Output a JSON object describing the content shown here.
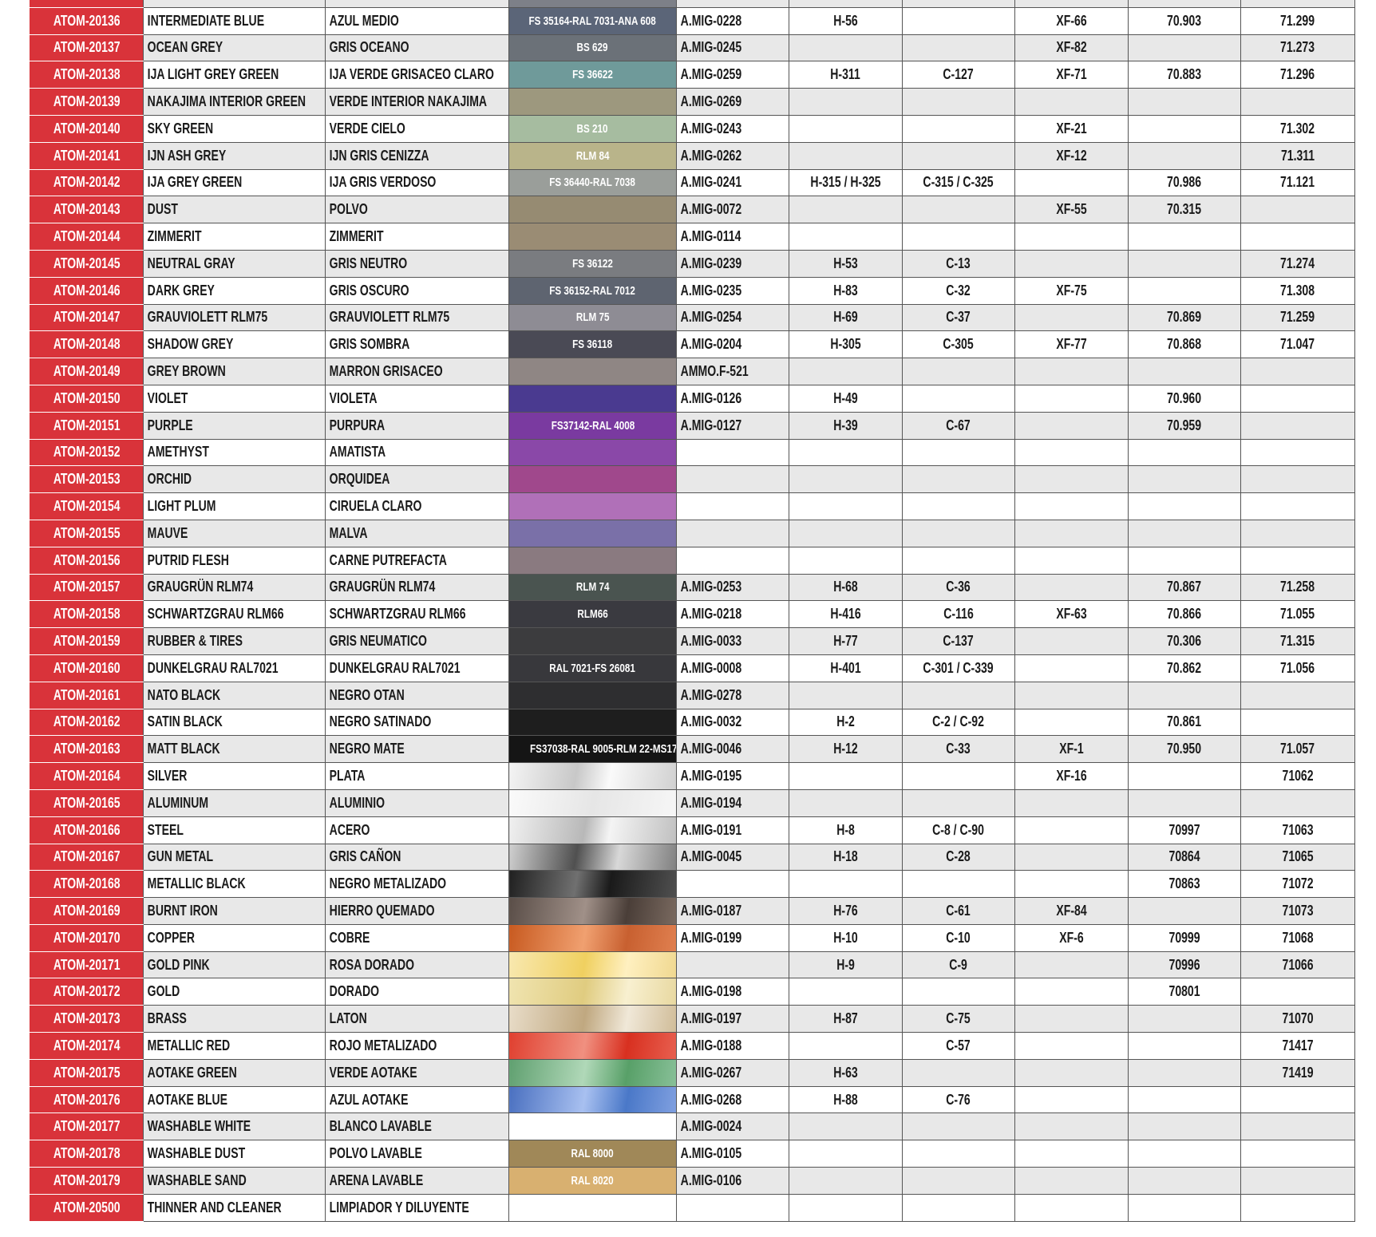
{
  "rows": [
    {
      "id": "",
      "en": "",
      "es": "",
      "sw": "",
      "col": "#7d8088",
      "amig": "",
      "h": "",
      "c": "",
      "xf": "",
      "v70": "",
      "v71": ""
    },
    {
      "id": "ATOM-20136",
      "en": "INTERMEDIATE BLUE",
      "es": "AZUL MEDIO",
      "sw": "FS 35164-RAL 7031-ANA 608",
      "col": "#5b6578",
      "amig": "A.MIG-0228",
      "h": "H-56",
      "c": "",
      "xf": "XF-66",
      "v70": "70.903",
      "v71": "71.299"
    },
    {
      "id": "ATOM-20137",
      "en": "OCEAN GREY",
      "es": "GRIS OCEANO",
      "sw": "BS 629",
      "col": "#6b7178",
      "amig": "A.MIG-0245",
      "h": "",
      "c": "",
      "xf": "XF-82",
      "v70": "",
      "v71": "71.273"
    },
    {
      "id": "ATOM-20138",
      "en": "IJA LIGHT GREY GREEN",
      "es": "IJA VERDE GRISACEO CLARO",
      "sw": "FS 36622",
      "col": "#6f9a9a",
      "amig": "A.MIG-0259",
      "h": "H-311",
      "c": "C-127",
      "xf": "XF-71",
      "v70": "70.883",
      "v71": "71.296"
    },
    {
      "id": "ATOM-20139",
      "en": "NAKAJIMA INTERIOR GREEN",
      "es": "VERDE INTERIOR NAKAJIMA",
      "sw": "",
      "col": "#9d987e",
      "amig": "A.MIG-0269",
      "h": "",
      "c": "",
      "xf": "",
      "v70": "",
      "v71": ""
    },
    {
      "id": "ATOM-20140",
      "en": "SKY GREEN",
      "es": "VERDE CIELO",
      "sw": "BS 210",
      "col": "#a6bca0",
      "amig": "A.MIG-0243",
      "h": "",
      "c": "",
      "xf": "XF-21",
      "v70": "",
      "v71": "71.302"
    },
    {
      "id": "ATOM-20141",
      "en": "IJN ASH GREY",
      "es": "IJN GRIS CENIZZA",
      "sw": "RLM 84",
      "col": "#b9b48a",
      "amig": "A.MIG-0262",
      "h": "",
      "c": "",
      "xf": "XF-12",
      "v70": "",
      "v71": "71.311"
    },
    {
      "id": "ATOM-20142",
      "en": "IJA GREY GREEN",
      "es": "IJA GRIS VERDOSO",
      "sw": "FS 36440-RAL 7038",
      "col": "#9a9e9a",
      "amig": "A.MIG-0241",
      "h": "H-315 / H-325",
      "c": "C-315 / C-325",
      "xf": "",
      "v70": "70.986",
      "v71": "71.121"
    },
    {
      "id": "ATOM-20143",
      "en": "DUST",
      "es": "POLVO",
      "sw": "",
      "col": "#968b72",
      "amig": "A.MIG-0072",
      "h": "",
      "c": "",
      "xf": "XF-55",
      "v70": "70.315",
      "v71": ""
    },
    {
      "id": "ATOM-20144",
      "en": "ZIMMERIT",
      "es": "ZIMMERIT",
      "sw": "",
      "col": "#9a8c74",
      "amig": "A.MIG-0114",
      "h": "",
      "c": "",
      "xf": "",
      "v70": "",
      "v71": ""
    },
    {
      "id": "ATOM-20145",
      "en": "NEUTRAL GRAY",
      "es": "GRIS NEUTRO",
      "sw": "FS 36122",
      "col": "#7a7c80",
      "amig": "A.MIG-0239",
      "h": "H-53",
      "c": "C-13",
      "xf": "",
      "v70": "",
      "v71": "71.274"
    },
    {
      "id": "ATOM-20146",
      "en": "DARK GREY",
      "es": "GRIS OSCURO",
      "sw": "FS 36152-RAL 7012",
      "col": "#5e6470",
      "amig": "A.MIG-0235",
      "h": "H-83",
      "c": "C-32",
      "xf": "XF-75",
      "v70": "",
      "v71": "71.308"
    },
    {
      "id": "ATOM-20147",
      "en": "GRAUVIOLETT RLM75",
      "es": "GRAUVIOLETT RLM75",
      "sw": "RLM 75",
      "col": "#8e8c94",
      "amig": "A.MIG-0254",
      "h": "H-69",
      "c": "C-37",
      "xf": "",
      "v70": "70.869",
      "v71": "71.259"
    },
    {
      "id": "ATOM-20148",
      "en": "SHADOW GREY",
      "es": "GRIS SOMBRA",
      "sw": "FS 36118",
      "col": "#4a4a55",
      "amig": "A.MIG-0204",
      "h": "H-305",
      "c": "C-305",
      "xf": "XF-77",
      "v70": "70.868",
      "v71": "71.047"
    },
    {
      "id": "ATOM-20149",
      "en": "GREY BROWN",
      "es": "MARRON GRISACEO",
      "sw": "",
      "col": "#8f8684",
      "amig": "AMMO.F-521",
      "h": "",
      "c": "",
      "xf": "",
      "v70": "",
      "v71": ""
    },
    {
      "id": "ATOM-20150",
      "en": "VIOLET",
      "es": "VIOLETA",
      "sw": "",
      "col": "#4a3a90",
      "amig": "A.MIG-0126",
      "h": "H-49",
      "c": "",
      "xf": "",
      "v70": "70.960",
      "v71": ""
    },
    {
      "id": "ATOM-20151",
      "en": "PURPLE",
      "es": "PURPURA",
      "sw": "FS37142-RAL 4008",
      "col": "#7a3aa0",
      "amig": "A.MIG-0127",
      "h": "H-39",
      "c": "C-67",
      "xf": "",
      "v70": "70.959",
      "v71": ""
    },
    {
      "id": "ATOM-20152",
      "en": "AMETHYST",
      "es": "AMATISTA",
      "sw": "",
      "col": "#8a48a8",
      "amig": "",
      "h": "",
      "c": "",
      "xf": "",
      "v70": "",
      "v71": ""
    },
    {
      "id": "ATOM-20153",
      "en": "ORCHID",
      "es": "ORQUIDEA",
      "sw": "",
      "col": "#a0488c",
      "amig": "",
      "h": "",
      "c": "",
      "xf": "",
      "v70": "",
      "v71": ""
    },
    {
      "id": "ATOM-20154",
      "en": "LIGHT PLUM",
      "es": "CIRUELA CLARO",
      "sw": "",
      "col": "#b070b8",
      "amig": "",
      "h": "",
      "c": "",
      "xf": "",
      "v70": "",
      "v71": ""
    },
    {
      "id": "ATOM-20155",
      "en": "MAUVE",
      "es": "MALVA",
      "sw": "",
      "col": "#7a70a8",
      "amig": "",
      "h": "",
      "c": "",
      "xf": "",
      "v70": "",
      "v71": ""
    },
    {
      "id": "ATOM-20156",
      "en": "PUTRID FLESH",
      "es": "CARNE PUTREFACTA",
      "sw": "",
      "col": "#8a7a80",
      "amig": "",
      "h": "",
      "c": "",
      "xf": "",
      "v70": "",
      "v71": ""
    },
    {
      "id": "ATOM-20157",
      "en": "GRAUGRÜN RLM74",
      "es": "GRAUGRÜN RLM74",
      "sw": "RLM 74",
      "col": "#4a5450",
      "amig": "A.MIG-0253",
      "h": "H-68",
      "c": "C-36",
      "xf": "",
      "v70": "70.867",
      "v71": "71.258"
    },
    {
      "id": "ATOM-20158",
      "en": "SCHWARTZGRAU RLM66",
      "es": "SCHWARTZGRAU RLM66",
      "sw": "RLM66",
      "col": "#3a3a40",
      "amig": "A.MIG-0218",
      "h": "H-416",
      "c": "C-116",
      "xf": "XF-63",
      "v70": "70.866",
      "v71": "71.055"
    },
    {
      "id": "ATOM-20159",
      "en": "RUBBER & TIRES",
      "es": "GRIS NEUMATICO",
      "sw": "",
      "col": "#3c3c3e",
      "amig": "A.MIG-0033",
      "h": "H-77",
      "c": "C-137",
      "xf": "",
      "v70": "70.306",
      "v71": "71.315"
    },
    {
      "id": "ATOM-20160",
      "en": "DUNKELGRAU RAL7021",
      "es": "DUNKELGRAU RAL7021",
      "sw": "RAL 7021-FS 26081",
      "col": "#38383c",
      "amig": "A.MIG-0008",
      "h": "H-401",
      "c": "C-301 / C-339",
      "xf": "",
      "v70": "70.862",
      "v71": "71.056"
    },
    {
      "id": "ATOM-20161",
      "en": "NATO BLACK",
      "es": "NEGRO OTAN",
      "sw": "",
      "col": "#2e2e30",
      "amig": "A.MIG-0278",
      "h": "",
      "c": "",
      "xf": "",
      "v70": "",
      "v71": ""
    },
    {
      "id": "ATOM-20162",
      "en": "SATIN BLACK",
      "es": "NEGRO SATINADO",
      "sw": "",
      "col": "#1e1e1e",
      "amig": "A.MIG-0032",
      "h": "H-2",
      "c": "C-2 / C-92",
      "xf": "",
      "v70": "70.861",
      "v71": ""
    },
    {
      "id": "ATOM-20163",
      "en": "MATT BLACK",
      "es": "NEGRO MATE",
      "sw": "FS37038-RAL 9005-RLM 22-MS17",
      "col": "#151515",
      "amig": "A.MIG-0046",
      "h": "H-12",
      "c": "C-33",
      "xf": "XF-1",
      "v70": "70.950",
      "v71": "71.057"
    },
    {
      "id": "ATOM-20164",
      "en": "SILVER",
      "es": "PLATA",
      "sw": "",
      "col": "linear-gradient(100deg,#f4f4f4,#c8c8c8 40%,#fafafa 60%,#d0d0d0)",
      "amig": "A.MIG-0195",
      "h": "",
      "c": "",
      "xf": "XF-16",
      "v70": "",
      "v71": "71062"
    },
    {
      "id": "ATOM-20165",
      "en": "ALUMINUM",
      "es": "ALUMINIO",
      "sw": "",
      "col": "linear-gradient(100deg,#fafafa,#e6e6e6 50%,#f6f6f6)",
      "amig": "A.MIG-0194",
      "h": "",
      "c": "",
      "xf": "",
      "v70": "",
      "v71": ""
    },
    {
      "id": "ATOM-20166",
      "en": "STEEL",
      "es": "ACERO",
      "sw": "",
      "col": "linear-gradient(100deg,#f0f0f0,#b8b8b8 45%,#f4f4f4 60%,#c0c0c0)",
      "amig": "A.MIG-0191",
      "h": "H-8",
      "c": "C-8 / C-90",
      "xf": "",
      "v70": "70997",
      "v71": "71063"
    },
    {
      "id": "ATOM-20167",
      "en": "GUN METAL",
      "es": "GRIS CAÑON",
      "sw": "",
      "col": "linear-gradient(100deg,#d0d0d0,#505050 40%,#d8d8d8 65%,#808080)",
      "amig": "A.MIG-0045",
      "h": "H-18",
      "c": "C-28",
      "xf": "",
      "v70": "70864",
      "v71": "71065"
    },
    {
      "id": "ATOM-20168",
      "en": "METALLIC BLACK",
      "es": "NEGRO METALIZADO",
      "sw": "",
      "col": "linear-gradient(100deg,#202020,#707070 40%,#1a1a1a 60%,#505050)",
      "amig": "",
      "h": "",
      "c": "",
      "xf": "",
      "v70": "70863",
      "v71": "71072"
    },
    {
      "id": "ATOM-20169",
      "en": "BURNT IRON",
      "es": "HIERRO QUEMADO",
      "sw": "",
      "col": "linear-gradient(100deg,#5a4e48,#a09088 45%,#4a3e38 70%,#7a6a60)",
      "amig": "A.MIG-0187",
      "h": "H-76",
      "c": "C-61",
      "xf": "XF-84",
      "v70": "",
      "v71": "71073"
    },
    {
      "id": "ATOM-20170",
      "en": "COPPER",
      "es": "COBRE",
      "sw": "",
      "col": "linear-gradient(100deg,#c85a20,#f0a070 45%,#c86030 70%,#e08050)",
      "amig": "A.MIG-0199",
      "h": "H-10",
      "c": "C-10",
      "xf": "XF-6",
      "v70": "70999",
      "v71": "71068"
    },
    {
      "id": "ATOM-20171",
      "en": "GOLD PINK",
      "es": "ROSA DORADO",
      "sw": "",
      "col": "linear-gradient(100deg,#f8e8b0,#f0d060 45%,#fff0c0 70%,#f0d890)",
      "amig": "",
      "h": "H-9",
      "c": "C-9",
      "xf": "",
      "v70": "70996",
      "v71": "71066"
    },
    {
      "id": "ATOM-20172",
      "en": "GOLD",
      "es": "DORADO",
      "sw": "",
      "col": "linear-gradient(100deg,#f0e4b0,#e0cc80 45%,#f8f0d0 70%,#e8d8a0)",
      "amig": "A.MIG-0198",
      "h": "",
      "c": "",
      "xf": "",
      "v70": "70801",
      "v71": ""
    },
    {
      "id": "ATOM-20173",
      "en": "BRASS",
      "es": "LATON",
      "sw": "",
      "col": "linear-gradient(100deg,#e8dcc8,#c0a880 45%,#f0e8d8 70%,#d0bc98)",
      "amig": "A.MIG-0197",
      "h": "H-87",
      "c": "C-75",
      "xf": "",
      "v70": "",
      "v71": "71070"
    },
    {
      "id": "ATOM-20174",
      "en": "METALLIC RED",
      "es": "ROJO METALIZADO",
      "sw": "",
      "col": "linear-gradient(100deg,#e04030,#f09080 45%,#d83020 70%,#e86050)",
      "amig": "A.MIG-0188",
      "h": "",
      "c": "C-57",
      "xf": "",
      "v70": "",
      "v71": "71417"
    },
    {
      "id": "ATOM-20175",
      "en": "AOTAKE GREEN",
      "es": "VERDE AOTAKE",
      "sw": "",
      "col": "linear-gradient(100deg,#60a070,#b0d8b8 45%,#58a068 70%,#88c098)",
      "amig": "A.MIG-0267",
      "h": "H-63",
      "c": "",
      "xf": "",
      "v70": "",
      "v71": "71419"
    },
    {
      "id": "ATOM-20176",
      "en": "AOTAKE BLUE",
      "es": "AZUL AOTAKE",
      "sw": "",
      "col": "linear-gradient(100deg,#4a70c0,#a8c0f0 45%,#4a78c8 70%,#80a0e0)",
      "amig": "A.MIG-0268",
      "h": "H-88",
      "c": "C-76",
      "xf": "",
      "v70": "",
      "v71": ""
    },
    {
      "id": "ATOM-20177",
      "en": "WASHABLE WHITE",
      "es": "BLANCO LAVABLE",
      "sw": "",
      "col": "#ffffff",
      "amig": "A.MIG-0024",
      "h": "",
      "c": "",
      "xf": "",
      "v70": "",
      "v71": ""
    },
    {
      "id": "ATOM-20178",
      "en": "WASHABLE DUST",
      "es": "POLVO LAVABLE",
      "sw": "RAL 8000",
      "col": "#a08858",
      "amig": "A.MIG-0105",
      "h": "",
      "c": "",
      "xf": "",
      "v70": "",
      "v71": ""
    },
    {
      "id": "ATOM-20179",
      "en": "WASHABLE SAND",
      "es": "ARENA LAVABLE",
      "sw": "RAL 8020",
      "col": "#d8b070",
      "amig": "A.MIG-0106",
      "h": "",
      "c": "",
      "xf": "",
      "v70": "",
      "v71": ""
    },
    {
      "id": "ATOM-20500",
      "en": "THINNER AND  CLEANER",
      "es": "LIMPIADOR Y DILUYENTE",
      "sw": "",
      "col": "#ffffff",
      "amig": "",
      "h": "",
      "c": "",
      "xf": "",
      "v70": "",
      "v71": ""
    }
  ]
}
